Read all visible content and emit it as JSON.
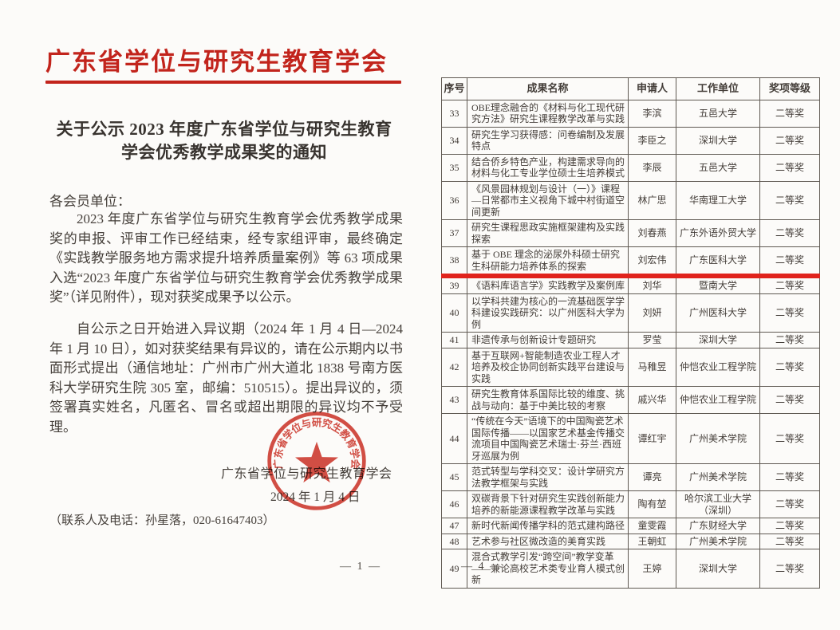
{
  "colors": {
    "accent_red": "#c2241c",
    "highlight_red": "#e0231c",
    "seal_red": "#ce362b",
    "body_text": "#46403b",
    "table_border": "#5f5952"
  },
  "page_left": {
    "letterhead": "广东省学位与研究生教育学会",
    "title_line1": "关于公示 2023 年度广东省学位与研究生教育",
    "title_line2": "学会优秀教学成果奖的通知",
    "salutation": "各会员单位：",
    "paragraph1": "2023 年度广东省学位与研究生教育学会优秀教学成果奖的申报、评审工作已经结束，经专家组评审，最终确定《实践教学服务地方需求提升培养质量案例》等 63 项成果入选“2023 年度广东省学位与研究生教育学会优秀教学成果奖”（详见附件），现对获奖成果予以公示。",
    "paragraph2": "自公示之日开始进入异议期（2024 年 1 月 4 日—2024 年 1 月 10 日），如对获奖结果有异议的，请在公示期内以书面形式提出（通信地址：广州市广州大道北 1838 号南方医科大学研究生院 305 室，邮编：510515）。提出异议的，须签署真实姓名，凡匿名、冒名或超出期限的异议均不予受理。",
    "signature": "广东省学位与研究生教育学会",
    "date": "2024 年 1 月 4 日",
    "seal_text": "广东省学位与研究生教育学会",
    "contact": "（联系人及电话：孙星落，020-61647403）",
    "page_number": "— 1 —"
  },
  "page_right": {
    "page_number": "— 4 —",
    "table": {
      "headers": [
        "序号",
        "成果名称",
        "申请人",
        "工作单位",
        "奖项等级"
      ],
      "rows": [
        {
          "index": "33",
          "title": "OBE理念融合的《材料与化工现代研究方法》研究生课程教学改革与实践",
          "applicant": "李滨",
          "organization": "五邑大学",
          "award": "二等奖",
          "highlight": false
        },
        {
          "index": "34",
          "title": "研究生学习获得感：问卷编制及发展特点",
          "applicant": "李臣之",
          "organization": "深圳大学",
          "award": "二等奖",
          "highlight": false
        },
        {
          "index": "35",
          "title": "结合侨乡特色产业，构建需求导向的材料与化工专业学位硕士生培养模式",
          "applicant": "李辰",
          "organization": "五邑大学",
          "award": "二等奖",
          "highlight": false
        },
        {
          "index": "36",
          "title": "《风景园林规划与设计（一）》课程—日常都市主义视角下城中村街道空间更新",
          "applicant": "林广思",
          "organization": "华南理工大学",
          "award": "二等奖",
          "highlight": false
        },
        {
          "index": "37",
          "title": "研究生课程思政实施框架建构及实践探索",
          "applicant": "刘春燕",
          "organization": "广东外语外贸大学",
          "award": "二等奖",
          "highlight": false
        },
        {
          "index": "38",
          "title": "基于 OBE 理念的泌尿外科硕士研究生科研能力培养体系的探索",
          "applicant": "刘宏伟",
          "organization": "广东医科大学",
          "award": "二等奖",
          "highlight": true
        },
        {
          "index": "39",
          "title": "《语料库语言学》实践教学及案例库",
          "applicant": "刘华",
          "organization": "暨南大学",
          "award": "二等奖",
          "highlight": false
        },
        {
          "index": "40",
          "title": "以学科共建为核心的一流基础医学学科建设实践研究：以广州医科大学为例",
          "applicant": "刘妍",
          "organization": "广州医科大学",
          "award": "二等奖",
          "highlight": false
        },
        {
          "index": "41",
          "title": "非遗传承与创新设计专题研究",
          "applicant": "罗莹",
          "organization": "深圳大学",
          "award": "二等奖",
          "highlight": false
        },
        {
          "index": "42",
          "title": "基于互联网+智能制造农业工程人才培养及校企协同创新实践平台建设与实践",
          "applicant": "马稚昱",
          "organization": "仲恺农业工程学院",
          "award": "二等奖",
          "highlight": false
        },
        {
          "index": "43",
          "title": "研究生教育体系国际比较的维度、挑战与动向：基于中美比较的考察",
          "applicant": "戚兴华",
          "organization": "仲恺农业工程学院",
          "award": "二等奖",
          "highlight": false
        },
        {
          "index": "44",
          "title": "“传统在今天”语境下的中国陶瓷艺术国际传播——以国家艺术基金传播交流项目中国陶瓷艺术瑞士·芬兰·西班牙巡展为例",
          "applicant": "谭红宇",
          "organization": "广州美术学院",
          "award": "二等奖",
          "highlight": false
        },
        {
          "index": "45",
          "title": "范式转型与学科交叉：设计学研究方法教学框架与实践",
          "applicant": "谭亮",
          "organization": "广州美术学院",
          "award": "二等奖",
          "highlight": false
        },
        {
          "index": "46",
          "title": "双碳背景下针对研究生实践创新能力培养的新能源课程教学改革与实践",
          "applicant": "陶有堃",
          "organization": "哈尔滨工业大学（深圳）",
          "award": "二等奖",
          "highlight": false
        },
        {
          "index": "47",
          "title": "新时代新闻传播学科的范式建构路径",
          "applicant": "童雯霞",
          "organization": "广东财经大学",
          "award": "二等奖",
          "highlight": false
        },
        {
          "index": "48",
          "title": "艺术参与社区微改造的美育实践",
          "applicant": "王朝虹",
          "organization": "广州美术学院",
          "award": "二等奖",
          "highlight": false
        },
        {
          "index": "49",
          "title": "混合式教学引发“跨空间”教学变革——兼论高校艺术类专业育人模式创新",
          "applicant": "王婷",
          "organization": "深圳大学",
          "award": "二等奖",
          "highlight": false
        }
      ]
    }
  }
}
